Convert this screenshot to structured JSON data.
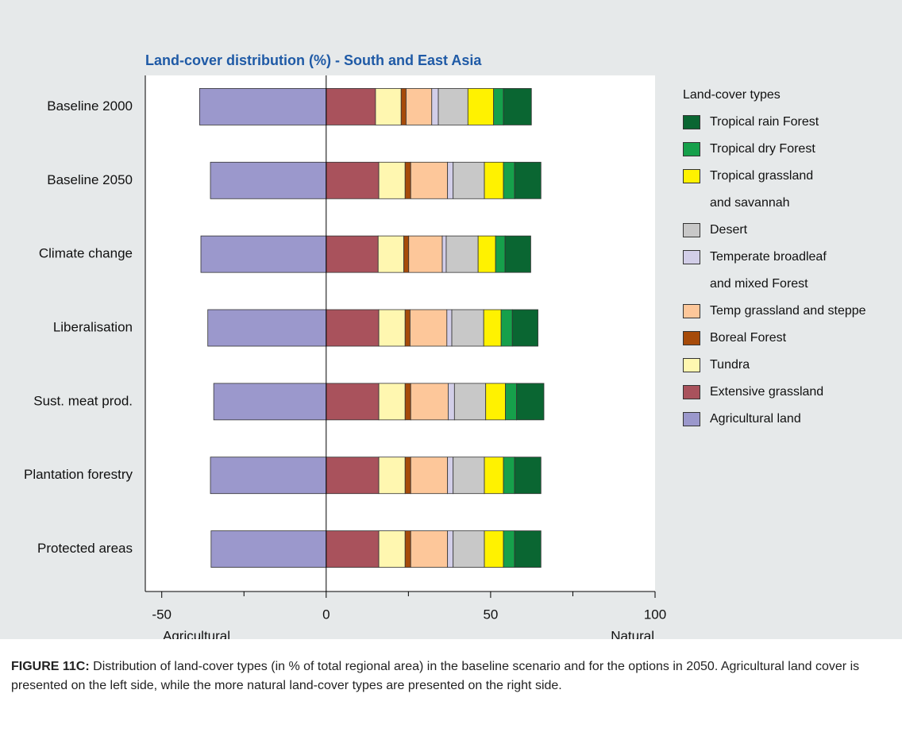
{
  "chart_data": {
    "type": "stacked_barh",
    "title": "Land-cover distribution (%) - South and East Asia",
    "categories": [
      "Baseline 2000",
      "Baseline 2050",
      "Climate change",
      "Liberalisation",
      "Sust. meat prod.",
      "Plantation forestry",
      "Protected areas"
    ],
    "series": [
      {
        "name": "Agricultural land",
        "color": "#9b98cc",
        "values": [
          -38.5,
          -35.2,
          -38.1,
          -36,
          -34.2,
          -35.2,
          -35
        ]
      },
      {
        "name": "Extensive grassland",
        "color": "#a9525c",
        "values": [
          15,
          16,
          15.8,
          16,
          16,
          16,
          16
        ]
      },
      {
        "name": "Tundra",
        "color": "#fff7b0",
        "values": [
          7.8,
          8,
          7.8,
          8,
          8,
          8,
          8
        ]
      },
      {
        "name": "Boreal Forest",
        "color": "#a64b0a",
        "values": [
          1.5,
          1.7,
          1.5,
          1.5,
          1.7,
          1.7,
          1.7
        ]
      },
      {
        "name": "Temp grassland and steppe",
        "color": "#fdc79a",
        "values": [
          7.8,
          11.2,
          10.2,
          11.2,
          11.4,
          11.2,
          11.2
        ]
      },
      {
        "name": "Temperate broadleaf\nand mixed Forest",
        "color": "#d2cee8",
        "values": [
          2,
          1.7,
          1.2,
          1.5,
          1.9,
          1.7,
          1.7
        ]
      },
      {
        "name": "Desert",
        "color": "#c8c8c8",
        "values": [
          9,
          9.5,
          9.7,
          9.7,
          9.5,
          9.5,
          9.5
        ]
      },
      {
        "name": "Tropical grassland\nand savannah",
        "color": "#fff200",
        "values": [
          7.8,
          5.8,
          5.3,
          5.3,
          6,
          5.8,
          5.8
        ]
      },
      {
        "name": "Tropical dry Forest",
        "color": "#16a04b",
        "values": [
          3,
          3.4,
          2.9,
          3.4,
          3.4,
          3.4,
          3.4
        ]
      },
      {
        "name": "Tropical rain Forest",
        "color": "#0a6632",
        "values": [
          8.5,
          8,
          7.8,
          7.8,
          8.3,
          8,
          8
        ]
      }
    ],
    "xlim": [
      -55,
      100
    ],
    "xticks": [
      -50,
      0,
      50,
      100
    ],
    "xminorticks": [
      -25,
      25,
      75
    ],
    "legend_title": "Land-cover types",
    "xlabel_left": "Agricultural",
    "xlabel_right": "Natural",
    "caption_label": "FIGURE 11C:",
    "caption": "Distribution of land-cover types (in % of total regional area) in the baseline scenario and for the options in 2050. Agricultural land cover is presented on the left side, while the more natural land-cover types are presented on the right side."
  }
}
